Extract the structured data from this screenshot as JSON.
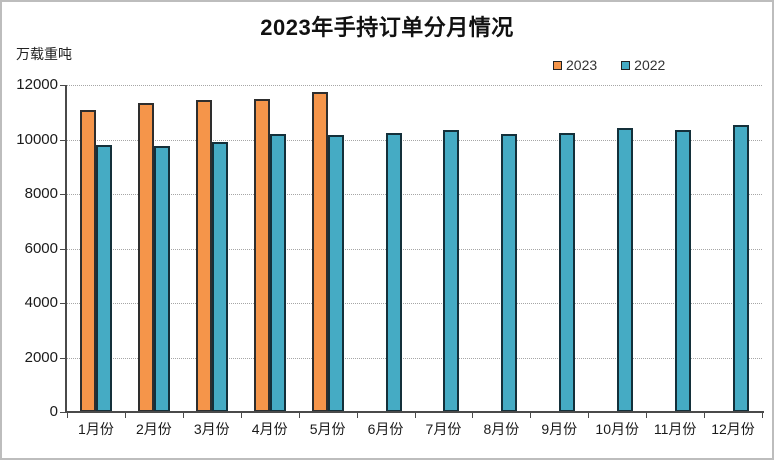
{
  "window": {
    "background_color": "#ffffff",
    "frame_border_color": "#bdbdbd"
  },
  "chart_data": {
    "type": "bar",
    "title": "2023年手持订单分月情况",
    "ylabel": "万载重吨",
    "xlabel": "",
    "categories": [
      "1月份",
      "2月份",
      "3月份",
      "4月份",
      "5月份",
      "6月份",
      "7月份",
      "8月份",
      "9月份",
      "10月份",
      "11月份",
      "12月份"
    ],
    "series": [
      {
        "name": "2023",
        "color": "#F5954A",
        "border_color": "#2e2e2e",
        "values": [
          11100,
          11350,
          11450,
          11500,
          11750,
          null,
          null,
          null,
          null,
          null,
          null,
          null
        ]
      },
      {
        "name": "2022",
        "color": "#45ABC4",
        "border_color": "#14303a",
        "values": [
          9800,
          9750,
          9900,
          10200,
          10150,
          10250,
          10350,
          10190,
          10240,
          10420,
          10340,
          10550
        ]
      }
    ],
    "ylim": [
      0,
      12000
    ],
    "yticks": [
      0,
      2000,
      4000,
      6000,
      8000,
      10000,
      12000
    ],
    "grid": "horizontal-dotted",
    "gridline_color": "#a6a6a6",
    "axis_color": "#4a4a4a",
    "legend_position": "top-right"
  }
}
